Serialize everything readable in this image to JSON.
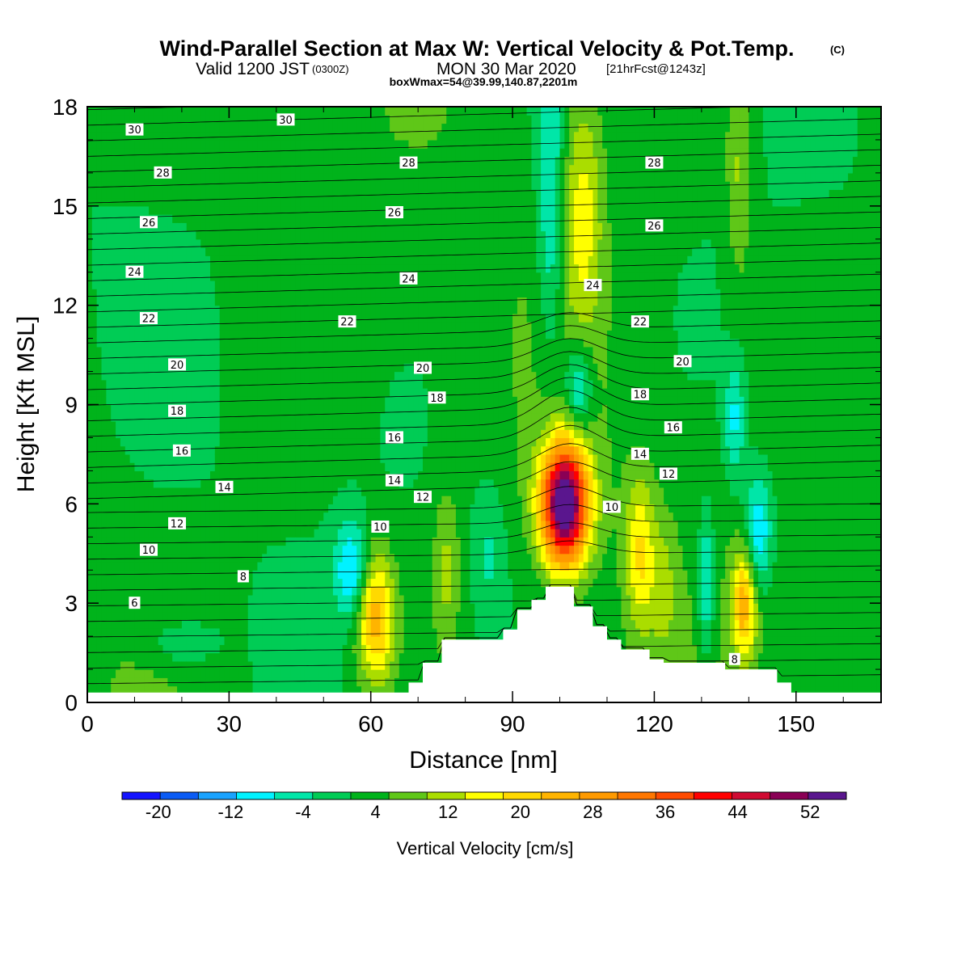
{
  "header": {
    "title": "Wind-Parallel Section at Max W: Vertical Velocity & Pot.Temp.",
    "title_mark": "(C)",
    "valid_prefix": "Valid 1200 JST",
    "valid_zulu": "(0300Z)",
    "valid_date": "MON 30 Mar 2020",
    "forecast_tag": "[21hrFcst@1243z]",
    "box_info": "boxWmax=54@39.99,140.87,2201m"
  },
  "colors": {
    "levels": [
      "#1414ff",
      "#0b5cf5",
      "#1aa3ff",
      "#00f2ff",
      "#00e6a8",
      "#00cc55",
      "#00b31b",
      "#5fc718",
      "#aadd00",
      "#ffff00",
      "#ffd900",
      "#ffb400",
      "#ff9a00",
      "#ff7700",
      "#ff4b00",
      "#ff0000",
      "#d00a32",
      "#8a0055",
      "#5a168e"
    ],
    "terrain": "#ffffff"
  },
  "chart_data": {
    "type": "heatmap",
    "xlabel": "Distance [nm]",
    "ylabel": "Height [Kft MSL]",
    "xlim": [
      0,
      168
    ],
    "ylim": [
      0,
      18
    ],
    "xticks": [
      "0",
      "30",
      "60",
      "90",
      "120",
      "150"
    ],
    "xtick_values": [
      0,
      30,
      60,
      90,
      120,
      150
    ],
    "yticks": [
      "0",
      "3",
      "6",
      "9",
      "12",
      "15",
      "18"
    ],
    "ytick_values": [
      0,
      3,
      6,
      9,
      12,
      15,
      18
    ],
    "colorbar": {
      "label": "Vertical Velocity [cm/s]",
      "min": -24,
      "max": 56,
      "step": 4,
      "tick_labels": [
        "-20",
        "-12",
        "-4",
        "4",
        "12",
        "20",
        "28",
        "36",
        "44",
        "52"
      ],
      "tick_values": [
        -20,
        -12,
        -4,
        4,
        12,
        20,
        28,
        36,
        44,
        52
      ]
    },
    "terrain_profile": {
      "x": [
        0,
        68,
        68,
        71,
        71,
        75,
        75,
        88,
        88,
        91,
        91,
        94,
        94,
        97,
        97,
        103,
        103,
        107,
        107,
        110,
        110,
        113,
        113,
        119,
        119,
        122,
        122,
        135,
        135,
        146,
        146,
        149,
        149,
        168
      ],
      "height_kft": [
        0.3,
        0.3,
        0.6,
        0.6,
        1.2,
        1.2,
        1.9,
        1.9,
        2.2,
        2.2,
        2.8,
        2.8,
        3.1,
        3.1,
        3.5,
        3.5,
        2.9,
        2.9,
        2.3,
        2.3,
        1.9,
        1.9,
        1.6,
        1.6,
        1.3,
        1.3,
        1.2,
        1.2,
        1.0,
        1.0,
        0.6,
        0.6,
        0.3,
        0.3
      ]
    },
    "features": [
      {
        "x": 101,
        "height_kft": 6.0,
        "w": 54,
        "sx": 3.5,
        "sy": 1.3
      },
      {
        "x": 104,
        "height_kft": 9.5,
        "w": -14,
        "sx": 2.0,
        "sy": 1.0
      },
      {
        "x": 105,
        "height_kft": 15.0,
        "w": 12,
        "sx": 3.0,
        "sy": 2.8
      },
      {
        "x": 98,
        "height_kft": 15.0,
        "w": -10,
        "sx": 2.0,
        "sy": 3.5
      },
      {
        "x": 61,
        "height_kft": 2.6,
        "w": 22,
        "sx": 2.8,
        "sy": 1.4
      },
      {
        "x": 56,
        "height_kft": 4.0,
        "w": -14,
        "sx": 2.5,
        "sy": 1.0
      },
      {
        "x": 117,
        "height_kft": 4.5,
        "w": 14,
        "sx": 2.2,
        "sy": 1.6
      },
      {
        "x": 122,
        "height_kft": 3.5,
        "w": 6,
        "sx": 2.0,
        "sy": 1.5
      },
      {
        "x": 131,
        "height_kft": 3.5,
        "w": -12,
        "sx": 1.2,
        "sy": 1.5
      },
      {
        "x": 139,
        "height_kft": 3.0,
        "w": 20,
        "sx": 1.8,
        "sy": 1.2
      },
      {
        "x": 142,
        "height_kft": 5.2,
        "w": -14,
        "sx": 2.0,
        "sy": 1.2
      },
      {
        "x": 137,
        "height_kft": 8.5,
        "w": -10,
        "sx": 1.5,
        "sy": 1.2
      },
      {
        "x": 138,
        "height_kft": 16.0,
        "w": 8,
        "sx": 2.0,
        "sy": 2.5
      },
      {
        "x": 85,
        "height_kft": 4.5,
        "w": -6,
        "sx": 2.5,
        "sy": 1.5
      },
      {
        "x": 76,
        "height_kft": 4.0,
        "w": 8,
        "sx": 2.0,
        "sy": 1.8
      },
      {
        "x": 20,
        "height_kft": 1.8,
        "w": -6,
        "sx": 5.0,
        "sy": 0.5
      }
    ],
    "theta_labels": [
      {
        "x": 10,
        "height_kft": 3.0,
        "text": "6"
      },
      {
        "x": 33,
        "height_kft": 3.8,
        "text": "8"
      },
      {
        "x": 13,
        "height_kft": 4.6,
        "text": "10"
      },
      {
        "x": 19,
        "height_kft": 5.4,
        "text": "12"
      },
      {
        "x": 29,
        "height_kft": 6.5,
        "text": "14"
      },
      {
        "x": 20,
        "height_kft": 7.6,
        "text": "16"
      },
      {
        "x": 19,
        "height_kft": 8.8,
        "text": "18"
      },
      {
        "x": 19,
        "height_kft": 10.2,
        "text": "20"
      },
      {
        "x": 13,
        "height_kft": 11.6,
        "text": "22"
      },
      {
        "x": 10,
        "height_kft": 13.0,
        "text": "24"
      },
      {
        "x": 13,
        "height_kft": 14.5,
        "text": "26"
      },
      {
        "x": 16,
        "height_kft": 16.0,
        "text": "28"
      },
      {
        "x": 10,
        "height_kft": 17.3,
        "text": "30"
      },
      {
        "x": 42,
        "height_kft": 17.6,
        "text": "30"
      },
      {
        "x": 68,
        "height_kft": 16.3,
        "text": "28"
      },
      {
        "x": 65,
        "height_kft": 14.8,
        "text": "26"
      },
      {
        "x": 68,
        "height_kft": 12.8,
        "text": "24"
      },
      {
        "x": 55,
        "height_kft": 11.5,
        "text": "22"
      },
      {
        "x": 71,
        "height_kft": 10.1,
        "text": "20"
      },
      {
        "x": 74,
        "height_kft": 9.2,
        "text": "18"
      },
      {
        "x": 65,
        "height_kft": 8.0,
        "text": "16"
      },
      {
        "x": 65,
        "height_kft": 6.7,
        "text": "14"
      },
      {
        "x": 71,
        "height_kft": 6.2,
        "text": "12"
      },
      {
        "x": 62,
        "height_kft": 5.3,
        "text": "10"
      },
      {
        "x": 120,
        "height_kft": 16.3,
        "text": "28"
      },
      {
        "x": 120,
        "height_kft": 14.4,
        "text": "26"
      },
      {
        "x": 107,
        "height_kft": 12.6,
        "text": "24"
      },
      {
        "x": 117,
        "height_kft": 11.5,
        "text": "22"
      },
      {
        "x": 126,
        "height_kft": 10.3,
        "text": "20"
      },
      {
        "x": 117,
        "height_kft": 9.3,
        "text": "18"
      },
      {
        "x": 124,
        "height_kft": 8.3,
        "text": "16"
      },
      {
        "x": 117,
        "height_kft": 7.5,
        "text": "14"
      },
      {
        "x": 123,
        "height_kft": 6.9,
        "text": "12"
      },
      {
        "x": 111,
        "height_kft": 5.9,
        "text": "10"
      },
      {
        "x": 137,
        "height_kft": 1.3,
        "text": "8"
      }
    ]
  }
}
